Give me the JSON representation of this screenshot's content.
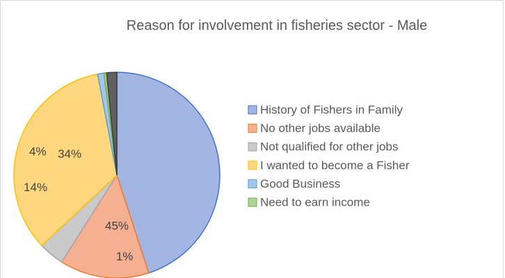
{
  "chart_data": {
    "type": "pie",
    "title": "Reason for involvement in fisheries sector - Male",
    "categories": [
      "History of Fishers in Family",
      "No other jobs available",
      "Not qualified for other jobs",
      "I wanted to become a Fisher",
      "Good Business",
      "Need to earn income",
      null
    ],
    "values": [
      45,
      14,
      4,
      34,
      1,
      0.4,
      1.6
    ],
    "value_labels": [
      "45%",
      "14%",
      "4%",
      "34%",
      "1%",
      null,
      null
    ],
    "colors": [
      "#a3b5e2",
      "#f5b091",
      "#c9c9c9",
      "#ffd77e",
      "#a2c6e8",
      "#b0d497",
      "#606060"
    ],
    "edge_colors": [
      "#4472c4",
      "#ed7d31",
      "#a5a5a5",
      "#ffc000",
      "#5b9bd5",
      "#70ad47",
      "#3a3a3a"
    ],
    "legend": "right"
  }
}
